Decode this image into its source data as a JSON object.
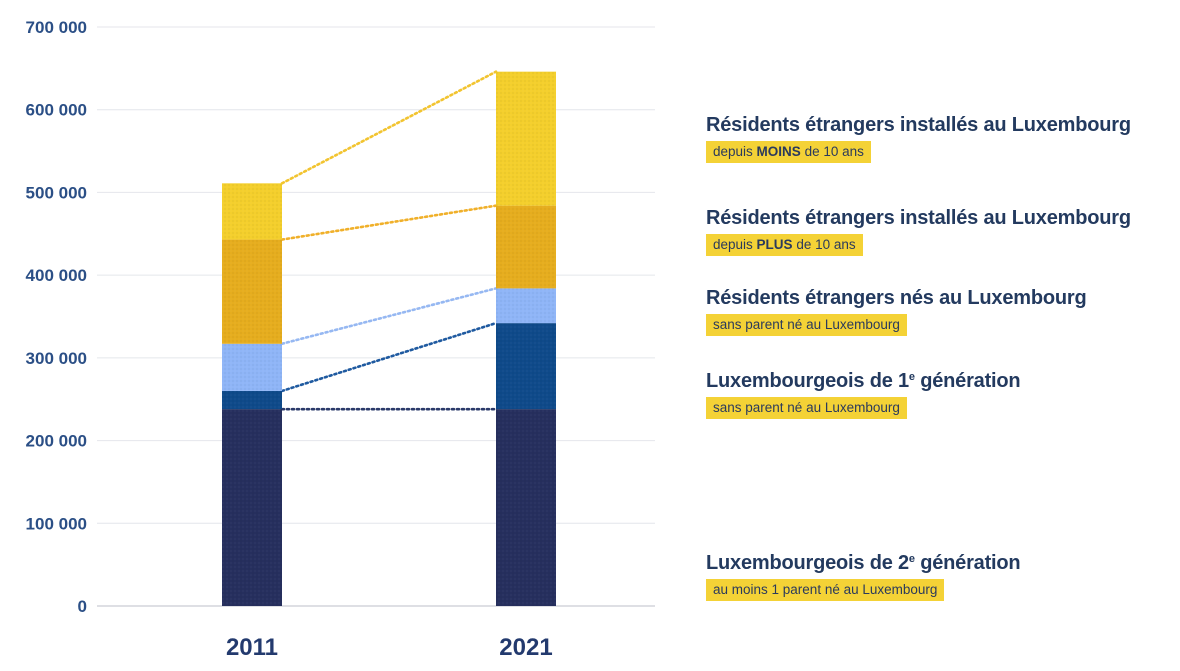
{
  "chart_data": {
    "type": "bar",
    "stacked": true,
    "categories": [
      "2011",
      "2021"
    ],
    "ylim": [
      0,
      700000
    ],
    "yticks": [
      "0",
      "100 000",
      "200 000",
      "300 000",
      "400 000",
      "500 000",
      "600 000",
      "700 000"
    ],
    "grid": true,
    "series": [
      {
        "name": "Luxembourgeois de 2e génération",
        "values": [
          238000,
          238000
        ],
        "color": "#262f5e"
      },
      {
        "name": "Luxembourgeois de 1e génération",
        "values": [
          22000,
          104000
        ],
        "color": "#0f4a8a"
      },
      {
        "name": "Résidents étrangers nés au Luxembourg",
        "values": [
          57000,
          42000
        ],
        "color": "#8fb5f7"
      },
      {
        "name": "Résidents étrangers installés au Luxembourg depuis PLUS de 10 ans",
        "values": [
          126000,
          100000
        ],
        "color": "#e6ad1e"
      },
      {
        "name": "Résidents étrangers installés au Luxembourg depuis MOINS de 10 ans",
        "values": [
          68000,
          162000
        ],
        "color": "#f4cf2c"
      }
    ],
    "connectors": [
      {
        "color": "#2a3a6a"
      },
      {
        "color": "#1f5aa0"
      },
      {
        "color": "#96b8f2"
      },
      {
        "color": "#f0b02a"
      },
      {
        "color": "#f2c430"
      }
    ]
  },
  "legend": [
    {
      "title": "Résidents étrangers installés au Luxembourg",
      "sub_pre": "depuis ",
      "sub_bold": "MOINS",
      "sub_post": " de 10 ans"
    },
    {
      "title": "Résidents étrangers installés au Luxembourg",
      "sub_pre": "depuis ",
      "sub_bold": "PLUS",
      "sub_post": " de 10 ans"
    },
    {
      "title": "Résidents étrangers nés au Luxembourg",
      "sub_pre": "sans parent né au Luxembourg",
      "sub_bold": "",
      "sub_post": ""
    },
    {
      "title_pre": "Luxembourgeois de 1",
      "title_sup": "e",
      "title_post": " génération",
      "sub_pre": "sans parent né au Luxembourg",
      "sub_bold": "",
      "sub_post": ""
    },
    {
      "title_pre": "Luxembourgeois de 2",
      "title_sup": "e",
      "title_post": " génération",
      "sub_pre": "au moins 1 parent né au Luxembourg",
      "sub_bold": "",
      "sub_post": ""
    }
  ]
}
